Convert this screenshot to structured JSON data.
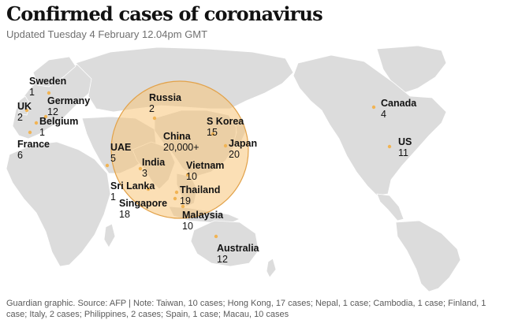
{
  "header": {
    "title": "Confirmed cases of coronavirus",
    "subtitle": "Updated Tuesday 4 February 12.04pm GMT"
  },
  "footer": {
    "note": "Guardian graphic. Source: AFP | Note: Taiwan, 10 cases; Hong Kong, 17 cases; Nepal, 1 case; Cambodia, 1 case; Finland, 1 case; Italy, 2 cases; Philippines, 2 cases; Spain, 1 case; Macau, 10 cases"
  },
  "colors": {
    "land": "#dcdcdc",
    "bubble_fill": "#f8c478",
    "bubble_stroke": "#e2a24a",
    "marker": "#f1b454",
    "text": "#121212"
  },
  "map_data": {
    "type": "proportional-symbol",
    "labelled_locations": [
      {
        "name": "Sweden",
        "cases": 1
      },
      {
        "name": "UK",
        "cases": 2
      },
      {
        "name": "Germany",
        "cases": 12
      },
      {
        "name": "Belgium",
        "cases": 1
      },
      {
        "name": "France",
        "cases": 6
      },
      {
        "name": "Russia",
        "cases": 2
      },
      {
        "name": "UAE",
        "cases": 5
      },
      {
        "name": "China",
        "cases": "20,000+"
      },
      {
        "name": "S Korea",
        "cases": 15
      },
      {
        "name": "Japan",
        "cases": 20
      },
      {
        "name": "India",
        "cases": 3
      },
      {
        "name": "Vietnam",
        "cases": 10
      },
      {
        "name": "Sri Lanka",
        "cases": 1
      },
      {
        "name": "Thailand",
        "cases": 19
      },
      {
        "name": "Singapore",
        "cases": 18
      },
      {
        "name": "Malaysia",
        "cases": 10
      },
      {
        "name": "Australia",
        "cases": 12
      },
      {
        "name": "Canada",
        "cases": 4
      },
      {
        "name": "US",
        "cases": 11
      }
    ]
  }
}
